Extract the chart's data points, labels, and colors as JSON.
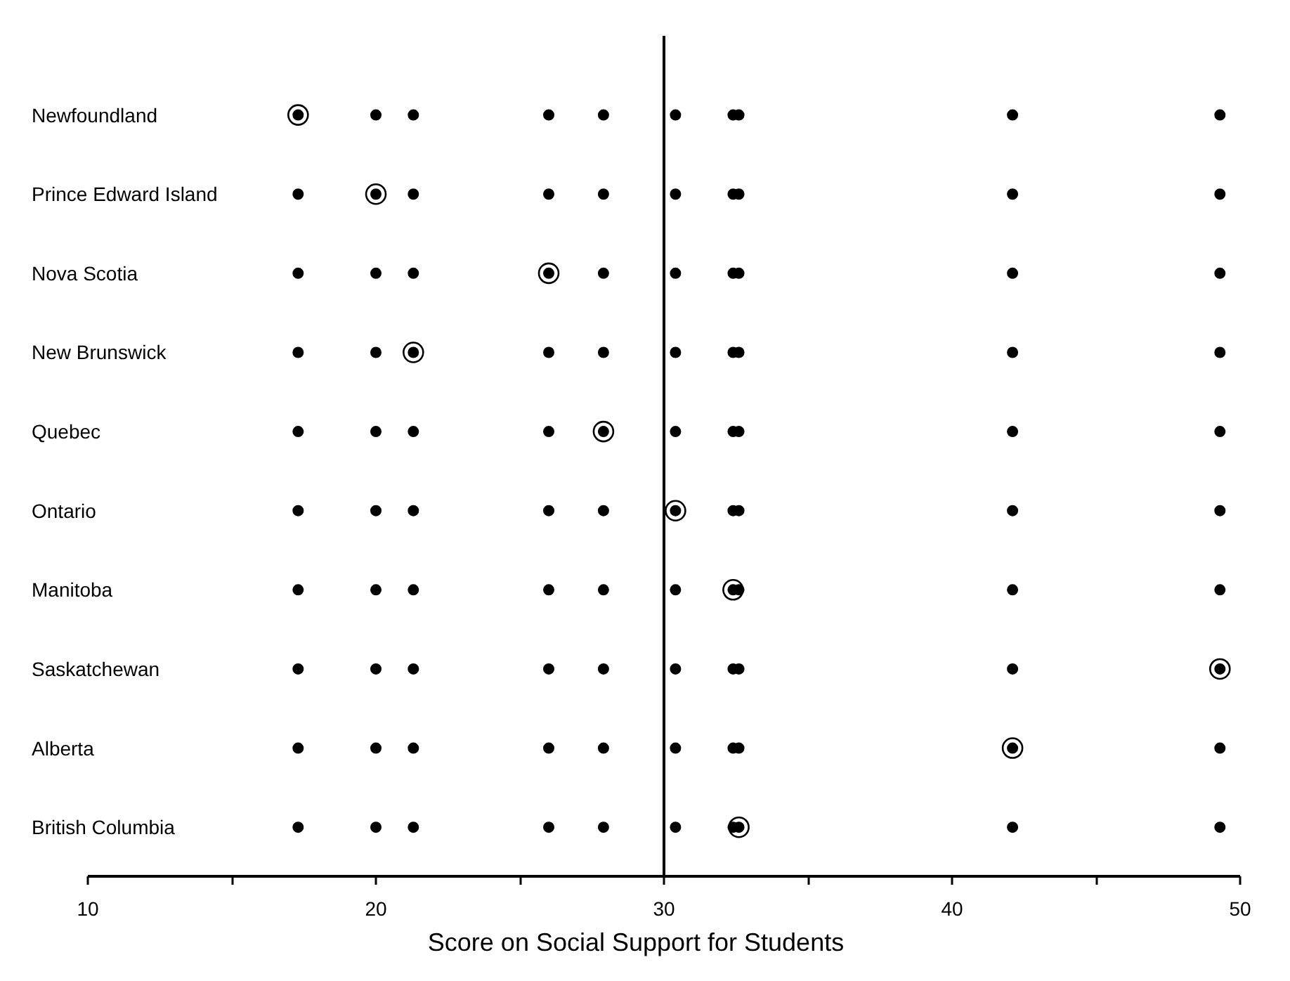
{
  "chart_data": {
    "type": "scatter",
    "orientation": "horizontal",
    "xlabel": "Score on Social Support for Students",
    "categories": [
      "Newfoundland",
      "Prince Edward Island",
      "Nova Scotia",
      "New Brunswick",
      "Quebec",
      "Ontario",
      "Manitoba",
      "Saskatchewan",
      "Alberta",
      "British Columbia"
    ],
    "xlim": [
      10,
      50
    ],
    "xticks": [
      10,
      {
        "value": 15,
        "label": null
      },
      20,
      {
        "value": 25,
        "label": null
      },
      30,
      {
        "value": 35,
        "label": null
      },
      40,
      {
        "value": 45,
        "label": null
      },
      50
    ],
    "ref_lines": [
      {
        "axis": "x",
        "value": 30,
        "label": null,
        "color": "#000000"
      }
    ],
    "grid": false,
    "marker": "circle",
    "series": [
      {
        "color": "#000000",
        "marker": "circle",
        "values": [
          17.3,
          20.0,
          26.0,
          21.3,
          27.9,
          30.4,
          32.4,
          49.3,
          42.1,
          32.6
        ]
      },
      {
        "color": "#000000",
        "values": [
          17.3,
          17.3,
          17.3,
          17.3,
          17.3,
          17.3,
          17.3,
          17.3,
          17.3,
          17.3
        ]
      },
      {
        "color": "#000000",
        "values": [
          20.0,
          20.0,
          20.0,
          20.0,
          20.0,
          20.0,
          20.0,
          20.0,
          20.0,
          20.0
        ]
      },
      {
        "color": "#000000",
        "values": [
          26.0,
          26.0,
          26.0,
          26.0,
          26.0,
          26.0,
          26.0,
          26.0,
          26.0,
          26.0
        ]
      },
      {
        "color": "#000000",
        "values": [
          21.3,
          21.3,
          21.3,
          21.3,
          21.3,
          21.3,
          21.3,
          21.3,
          21.3,
          21.3
        ]
      },
      {
        "color": "#000000",
        "values": [
          27.9,
          27.9,
          27.9,
          27.9,
          27.9,
          27.9,
          27.9,
          27.9,
          27.9,
          27.9
        ]
      },
      {
        "color": "#000000",
        "values": [
          30.4,
          30.4,
          30.4,
          30.4,
          30.4,
          30.4,
          30.4,
          30.4,
          30.4,
          30.4
        ]
      },
      {
        "color": "#000000",
        "values": [
          32.4,
          32.4,
          32.4,
          32.4,
          32.4,
          32.4,
          32.4,
          32.4,
          32.4,
          32.4
        ]
      },
      {
        "color": "#000000",
        "values": [
          49.3,
          49.3,
          49.3,
          49.3,
          49.3,
          49.3,
          49.3,
          49.3,
          49.3,
          49.3
        ]
      },
      {
        "color": "#000000",
        "values": [
          42.1,
          42.1,
          42.1,
          42.1,
          42.1,
          42.1,
          42.1,
          42.1,
          42.1,
          42.1
        ]
      },
      {
        "color": "#000000",
        "values": [
          32.6,
          32.6,
          32.6,
          32.6,
          32.6,
          32.6,
          32.6,
          32.6,
          32.6,
          32.6
        ]
      }
    ]
  }
}
